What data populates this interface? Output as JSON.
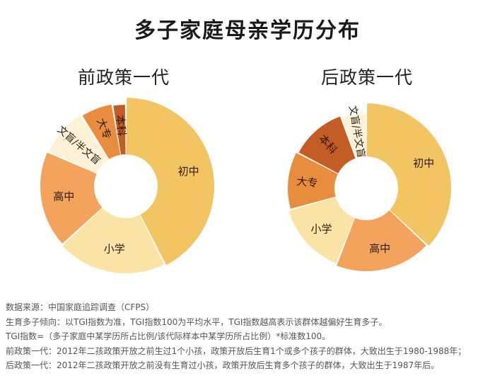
{
  "title": "多子家庭母亲学历分布",
  "chart_data": [
    {
      "type": "pie",
      "subtitle": "前政策一代",
      "slices": [
        {
          "label": "初中",
          "value": 40.5,
          "color": "#f2c462"
        },
        {
          "label": "小学",
          "value": 19.5,
          "color": "#fbe3a6"
        },
        {
          "label": "高中",
          "value": 17.5,
          "color": "#f3a35c"
        },
        {
          "label": "文盲/半文盲",
          "value": 9,
          "color": "#fdf1d8"
        },
        {
          "label": "大专",
          "value": 6,
          "color": "#e88d3e"
        },
        {
          "label": "本科",
          "value": 2.5,
          "color": "#c45c25"
        }
      ]
    },
    {
      "type": "pie",
      "subtitle": "后政策一代",
      "slices": [
        {
          "label": "初中",
          "value": 34,
          "color": "#f2c462"
        },
        {
          "label": "高中",
          "value": 17.5,
          "color": "#f3a35c"
        },
        {
          "label": "小学",
          "value": 13.5,
          "color": "#fbe3a6"
        },
        {
          "label": "大专",
          "value": 11,
          "color": "#e88d3e"
        },
        {
          "label": "本科",
          "value": 11,
          "color": "#c45c25"
        },
        {
          "label": "文盲/半文盲",
          "value": 5,
          "color": "#fdf1d8"
        }
      ]
    }
  ],
  "notes": [
    "数据来源：中国家庭追踪调查（CFPS）",
    "生育多子倾向：以TGI指数为准，TGI指数100为平均水平，TGI指数越高表示该群体越偏好生育多子。",
    "TGI指数=（多子家庭中某学历所占比例/该代际样本中某学历所占比例）*标准数100。",
    "前政策一代：2012年二孩政策开放之前生过1个小孩，政策开放后生育1个或多个孩子的群体，大致出生于1980-1988年；",
    "后政策一代：2012年二孩政策开放之前没有生育过小孩，政策开放后生育多个孩子的群体，大致出生于1987年后。"
  ]
}
